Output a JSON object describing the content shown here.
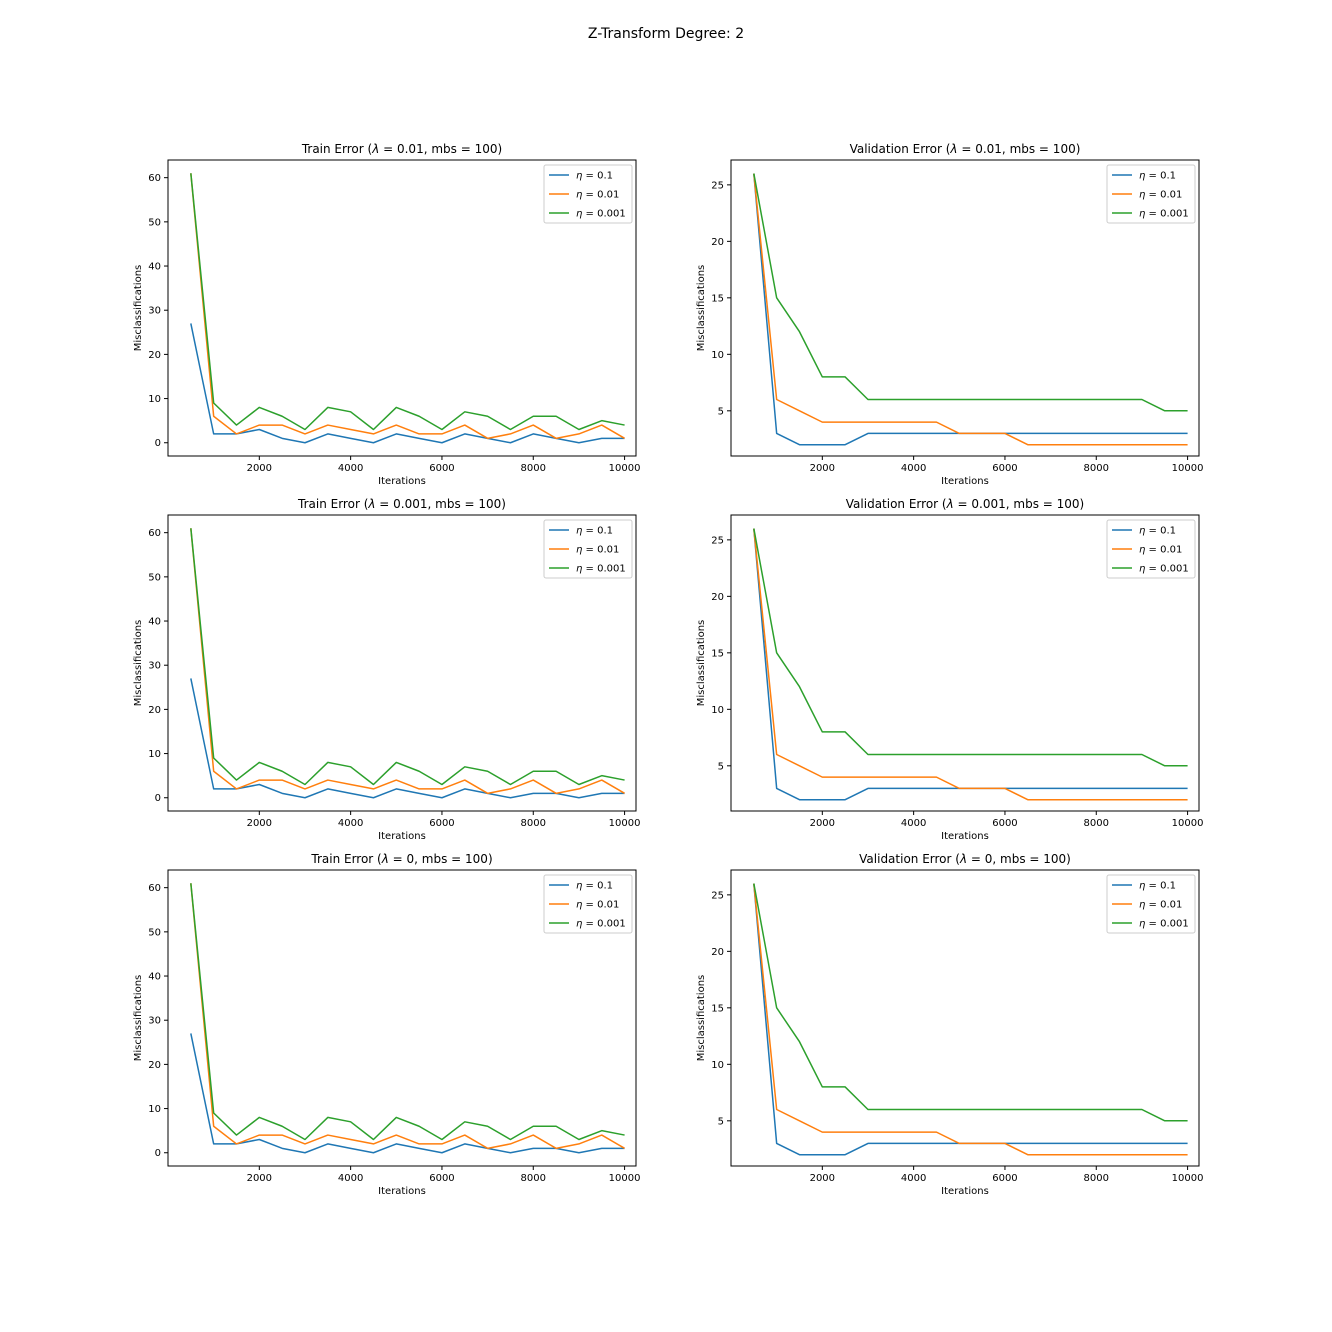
{
  "figure": {
    "title": "Z-Transform Degree: 2"
  },
  "colors": {
    "eta_0.1": "#1f77b4",
    "eta_0.01": "#ff7f0e",
    "eta_0.001": "#2ca02c"
  },
  "chart_data": [
    {
      "type": "line",
      "title_prefix": "Train Error (",
      "title_symbol": "λ",
      "title_suffix": " = 0.01, mbs = 100)",
      "xlabel": "Iterations",
      "ylabel": "Misclassifications",
      "xlim": [
        0,
        10250
      ],
      "ylim": [
        -3,
        64
      ],
      "xticks": [
        2000,
        4000,
        6000,
        8000,
        10000
      ],
      "yticks": [
        0,
        10,
        20,
        30,
        40,
        50,
        60
      ],
      "legend_position": "upper right",
      "x": [
        500,
        1000,
        1500,
        2000,
        2500,
        3000,
        3500,
        4000,
        4500,
        5000,
        5500,
        6000,
        6500,
        7000,
        7500,
        8000,
        8500,
        9000,
        9500,
        10000
      ],
      "series": [
        {
          "name_symbol": "η",
          "name_suffix": " = 0.1",
          "color": "#1f77b4",
          "values": [
            27,
            2,
            2,
            3,
            1,
            0,
            2,
            1,
            0,
            2,
            1,
            0,
            2,
            1,
            0,
            2,
            1,
            0,
            1,
            1
          ]
        },
        {
          "name_symbol": "η",
          "name_suffix": " = 0.01",
          "color": "#ff7f0e",
          "values": [
            61,
            6,
            2,
            4,
            4,
            2,
            4,
            3,
            2,
            4,
            2,
            2,
            4,
            1,
            2,
            4,
            1,
            2,
            4,
            1
          ]
        },
        {
          "name_symbol": "η",
          "name_suffix": " = 0.001",
          "color": "#2ca02c",
          "values": [
            61,
            9,
            4,
            8,
            6,
            3,
            8,
            7,
            3,
            8,
            6,
            3,
            7,
            6,
            3,
            6,
            6,
            3,
            5,
            4
          ]
        }
      ]
    },
    {
      "type": "line",
      "title_prefix": "Validation Error (",
      "title_symbol": "λ",
      "title_suffix": " = 0.01, mbs = 100)",
      "xlabel": "Iterations",
      "ylabel": "Misclassifications",
      "xlim": [
        0,
        10250
      ],
      "ylim": [
        1,
        27.2
      ],
      "xticks": [
        2000,
        4000,
        6000,
        8000,
        10000
      ],
      "yticks": [
        5,
        10,
        15,
        20,
        25
      ],
      "legend_position": "upper right",
      "x": [
        500,
        1000,
        1500,
        2000,
        2500,
        3000,
        3500,
        4000,
        4500,
        5000,
        5500,
        6000,
        6500,
        7000,
        7500,
        8000,
        8500,
        9000,
        9500,
        10000
      ],
      "series": [
        {
          "name_symbol": "η",
          "name_suffix": " = 0.1",
          "color": "#1f77b4",
          "values": [
            26,
            3,
            2,
            2,
            2,
            3,
            3,
            3,
            3,
            3,
            3,
            3,
            3,
            3,
            3,
            3,
            3,
            3,
            3,
            3
          ]
        },
        {
          "name_symbol": "η",
          "name_suffix": " = 0.01",
          "color": "#ff7f0e",
          "values": [
            26,
            6,
            5,
            4,
            4,
            4,
            4,
            4,
            4,
            3,
            3,
            3,
            2,
            2,
            2,
            2,
            2,
            2,
            2,
            2
          ]
        },
        {
          "name_symbol": "η",
          "name_suffix": " = 0.001",
          "color": "#2ca02c",
          "values": [
            26,
            15,
            12,
            8,
            8,
            6,
            6,
            6,
            6,
            6,
            6,
            6,
            6,
            6,
            6,
            6,
            6,
            6,
            5,
            5
          ]
        }
      ]
    },
    {
      "type": "line",
      "title_prefix": "Train Error (",
      "title_symbol": "λ",
      "title_suffix": " = 0.001, mbs = 100)",
      "xlabel": "Iterations",
      "ylabel": "Misclassifications",
      "xlim": [
        0,
        10250
      ],
      "ylim": [
        -3,
        64
      ],
      "xticks": [
        2000,
        4000,
        6000,
        8000,
        10000
      ],
      "yticks": [
        0,
        10,
        20,
        30,
        40,
        50,
        60
      ],
      "legend_position": "upper right",
      "x": [
        500,
        1000,
        1500,
        2000,
        2500,
        3000,
        3500,
        4000,
        4500,
        5000,
        5500,
        6000,
        6500,
        7000,
        7500,
        8000,
        8500,
        9000,
        9500,
        10000
      ],
      "series": [
        {
          "name_symbol": "η",
          "name_suffix": " = 0.1",
          "color": "#1f77b4",
          "values": [
            27,
            2,
            2,
            3,
            1,
            0,
            2,
            1,
            0,
            2,
            1,
            0,
            2,
            1,
            0,
            1,
            1,
            0,
            1,
            1
          ]
        },
        {
          "name_symbol": "η",
          "name_suffix": " = 0.01",
          "color": "#ff7f0e",
          "values": [
            61,
            6,
            2,
            4,
            4,
            2,
            4,
            3,
            2,
            4,
            2,
            2,
            4,
            1,
            2,
            4,
            1,
            2,
            4,
            1
          ]
        },
        {
          "name_symbol": "η",
          "name_suffix": " = 0.001",
          "color": "#2ca02c",
          "values": [
            61,
            9,
            4,
            8,
            6,
            3,
            8,
            7,
            3,
            8,
            6,
            3,
            7,
            6,
            3,
            6,
            6,
            3,
            5,
            4
          ]
        }
      ]
    },
    {
      "type": "line",
      "title_prefix": "Validation Error (",
      "title_symbol": "λ",
      "title_suffix": " = 0.001, mbs = 100)",
      "xlabel": "Iterations",
      "ylabel": "Misclassifications",
      "xlim": [
        0,
        10250
      ],
      "ylim": [
        1,
        27.2
      ],
      "xticks": [
        2000,
        4000,
        6000,
        8000,
        10000
      ],
      "yticks": [
        5,
        10,
        15,
        20,
        25
      ],
      "legend_position": "upper right",
      "x": [
        500,
        1000,
        1500,
        2000,
        2500,
        3000,
        3500,
        4000,
        4500,
        5000,
        5500,
        6000,
        6500,
        7000,
        7500,
        8000,
        8500,
        9000,
        9500,
        10000
      ],
      "series": [
        {
          "name_symbol": "η",
          "name_suffix": " = 0.1",
          "color": "#1f77b4",
          "values": [
            26,
            3,
            2,
            2,
            2,
            3,
            3,
            3,
            3,
            3,
            3,
            3,
            3,
            3,
            3,
            3,
            3,
            3,
            3,
            3
          ]
        },
        {
          "name_symbol": "η",
          "name_suffix": " = 0.01",
          "color": "#ff7f0e",
          "values": [
            26,
            6,
            5,
            4,
            4,
            4,
            4,
            4,
            4,
            3,
            3,
            3,
            2,
            2,
            2,
            2,
            2,
            2,
            2,
            2
          ]
        },
        {
          "name_symbol": "η",
          "name_suffix": " = 0.001",
          "color": "#2ca02c",
          "values": [
            26,
            15,
            12,
            8,
            8,
            6,
            6,
            6,
            6,
            6,
            6,
            6,
            6,
            6,
            6,
            6,
            6,
            6,
            5,
            5
          ]
        }
      ]
    },
    {
      "type": "line",
      "title_prefix": "Train Error (",
      "title_symbol": "λ",
      "title_suffix": " = 0, mbs = 100)",
      "xlabel": "Iterations",
      "ylabel": "Misclassifications",
      "xlim": [
        0,
        10250
      ],
      "ylim": [
        -3,
        64
      ],
      "xticks": [
        2000,
        4000,
        6000,
        8000,
        10000
      ],
      "yticks": [
        0,
        10,
        20,
        30,
        40,
        50,
        60
      ],
      "legend_position": "upper right",
      "x": [
        500,
        1000,
        1500,
        2000,
        2500,
        3000,
        3500,
        4000,
        4500,
        5000,
        5500,
        6000,
        6500,
        7000,
        7500,
        8000,
        8500,
        9000,
        9500,
        10000
      ],
      "series": [
        {
          "name_symbol": "η",
          "name_suffix": " = 0.1",
          "color": "#1f77b4",
          "values": [
            27,
            2,
            2,
            3,
            1,
            0,
            2,
            1,
            0,
            2,
            1,
            0,
            2,
            1,
            0,
            1,
            1,
            0,
            1,
            1
          ]
        },
        {
          "name_symbol": "η",
          "name_suffix": " = 0.01",
          "color": "#ff7f0e",
          "values": [
            61,
            6,
            2,
            4,
            4,
            2,
            4,
            3,
            2,
            4,
            2,
            2,
            4,
            1,
            2,
            4,
            1,
            2,
            4,
            1
          ]
        },
        {
          "name_symbol": "η",
          "name_suffix": " = 0.001",
          "color": "#2ca02c",
          "values": [
            61,
            9,
            4,
            8,
            6,
            3,
            8,
            7,
            3,
            8,
            6,
            3,
            7,
            6,
            3,
            6,
            6,
            3,
            5,
            4
          ]
        }
      ]
    },
    {
      "type": "line",
      "title_prefix": "Validation Error (",
      "title_symbol": "λ",
      "title_suffix": " = 0, mbs = 100)",
      "xlabel": "Iterations",
      "ylabel": "Misclassifications",
      "xlim": [
        0,
        10250
      ],
      "ylim": [
        1,
        27.2
      ],
      "xticks": [
        2000,
        4000,
        6000,
        8000,
        10000
      ],
      "yticks": [
        5,
        10,
        15,
        20,
        25
      ],
      "legend_position": "upper right",
      "x": [
        500,
        1000,
        1500,
        2000,
        2500,
        3000,
        3500,
        4000,
        4500,
        5000,
        5500,
        6000,
        6500,
        7000,
        7500,
        8000,
        8500,
        9000,
        9500,
        10000
      ],
      "series": [
        {
          "name_symbol": "η",
          "name_suffix": " = 0.1",
          "color": "#1f77b4",
          "values": [
            26,
            3,
            2,
            2,
            2,
            3,
            3,
            3,
            3,
            3,
            3,
            3,
            3,
            3,
            3,
            3,
            3,
            3,
            3,
            3
          ]
        },
        {
          "name_symbol": "η",
          "name_suffix": " = 0.01",
          "color": "#ff7f0e",
          "values": [
            26,
            6,
            5,
            4,
            4,
            4,
            4,
            4,
            4,
            3,
            3,
            3,
            2,
            2,
            2,
            2,
            2,
            2,
            2,
            2
          ]
        },
        {
          "name_symbol": "η",
          "name_suffix": " = 0.001",
          "color": "#2ca02c",
          "values": [
            26,
            15,
            12,
            8,
            8,
            6,
            6,
            6,
            6,
            6,
            6,
            6,
            6,
            6,
            6,
            6,
            6,
            6,
            5,
            5
          ]
        }
      ]
    }
  ]
}
